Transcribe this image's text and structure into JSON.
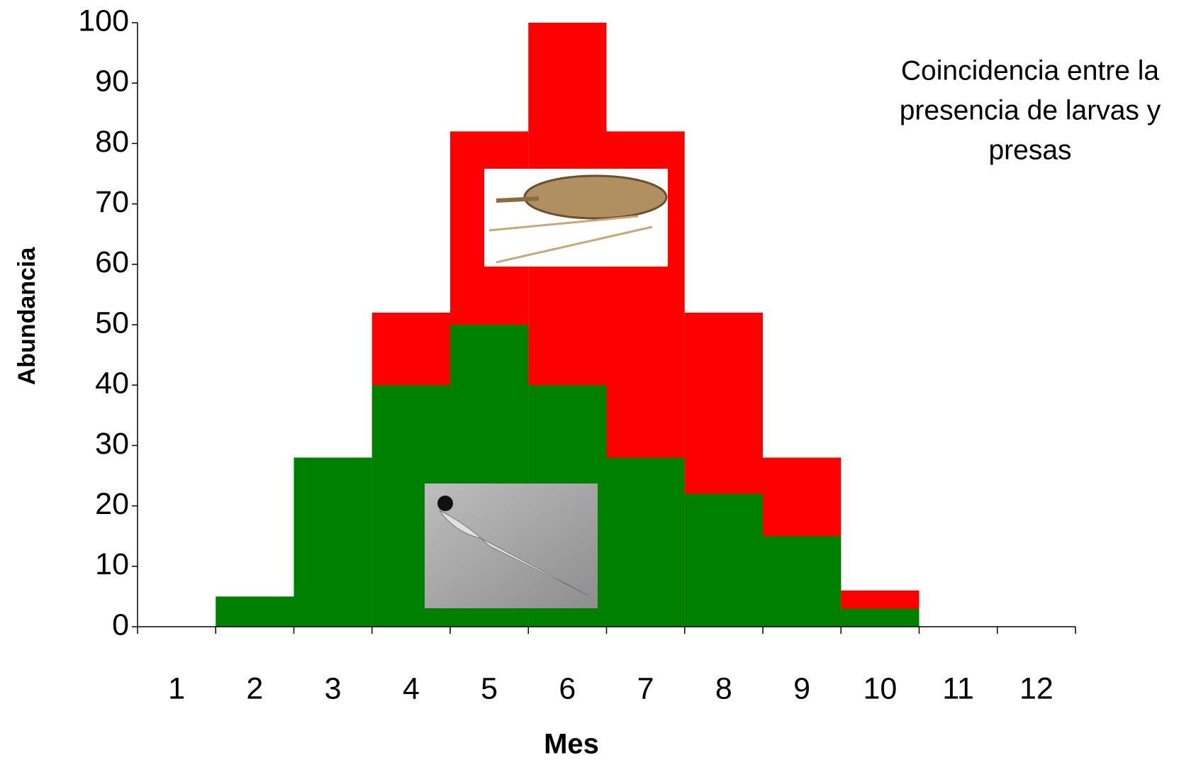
{
  "chart_data": {
    "type": "bar",
    "overlap": true,
    "x_label": "Mes",
    "y_label": "Abundancia",
    "annotation": [
      "Coincidencia entre la",
      "presencia de larvas y",
      "presas"
    ],
    "categories": [
      "1",
      "2",
      "3",
      "4",
      "5",
      "6",
      "7",
      "8",
      "9",
      "10",
      "11",
      "12"
    ],
    "series": [
      {
        "color": "#ff0000",
        "values": [
          0,
          0,
          0,
          52,
          82,
          100,
          82,
          52,
          28,
          6,
          0,
          0
        ]
      },
      {
        "color": "#008000",
        "values": [
          0,
          5,
          28,
          40,
          50,
          40,
          28,
          22,
          15,
          3,
          0,
          0
        ]
      }
    ],
    "ylim": [
      0,
      100
    ],
    "yticks": [
      0,
      10,
      20,
      30,
      40,
      50,
      60,
      70,
      80,
      90,
      100
    ],
    "grid": false
  }
}
